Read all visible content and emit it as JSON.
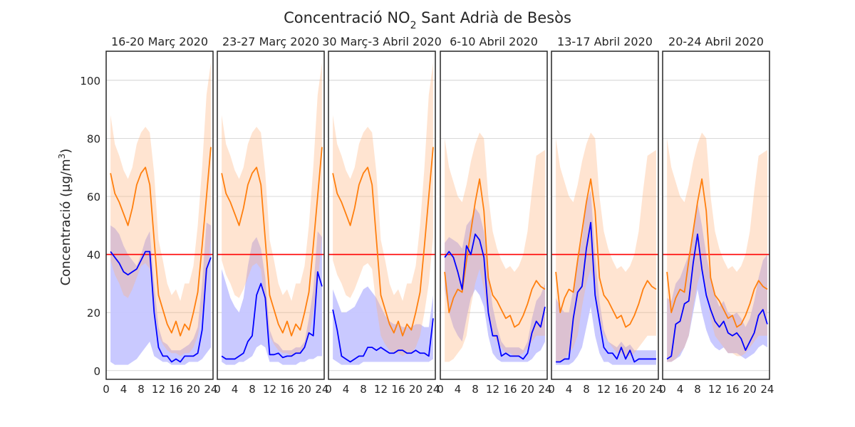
{
  "chart_data": {
    "type": "line",
    "title": "Concentració NO₂ Sant Adrià de Besòs",
    "title_parts": {
      "pre": "Concentració NO",
      "sub": "2",
      "post": " Sant Adrià de Besòs"
    },
    "ylabel": "Concentració (μg/m³)",
    "ylabel_parts": {
      "pre": "Concentració (μg/m",
      "sup": "3",
      "post": ")"
    },
    "xlim": [
      0,
      24.5
    ],
    "ylim": [
      -3,
      110
    ],
    "yticks": [
      0,
      20,
      40,
      60,
      80,
      100
    ],
    "xticks": [
      0,
      4,
      8,
      12,
      16,
      20,
      24
    ],
    "grid": true,
    "reference_line": {
      "value": 40,
      "color": "#ff0000"
    },
    "colors": {
      "observed_line": "#0000ff",
      "observed_band": "#c6c6ff",
      "expected_line": "#ff7f0e",
      "expected_band": "#ffdbbf",
      "overlap_band": "#c8a8c4"
    },
    "panels": [
      {
        "title": "16-20 Març 2020",
        "x": [
          1,
          2,
          3,
          4,
          5,
          6,
          7,
          8,
          9,
          10,
          11,
          12,
          13,
          14,
          15,
          16,
          17,
          18,
          19,
          20,
          21,
          22,
          23,
          24
        ],
        "observed": [
          41,
          39,
          37,
          34,
          33,
          34,
          35,
          38,
          41,
          41,
          20,
          8,
          5,
          5,
          3,
          4,
          3,
          5,
          5,
          5,
          6,
          14,
          35,
          39
        ],
        "observed_low": [
          3,
          2,
          2,
          2,
          2,
          3,
          4,
          6,
          8,
          10,
          5,
          4,
          3,
          3,
          2,
          2,
          2,
          2,
          3,
          3,
          3,
          4,
          6,
          8
        ],
        "observed_high": [
          50,
          49,
          47,
          43,
          40,
          38,
          36,
          40,
          45,
          48,
          30,
          15,
          10,
          9,
          7,
          7,
          7,
          8,
          9,
          11,
          15,
          30,
          51,
          50
        ],
        "expected": [
          68,
          61,
          58,
          54,
          50,
          56,
          64,
          68,
          70,
          64,
          45,
          26,
          21,
          16,
          13,
          17,
          12,
          16,
          14,
          20,
          27,
          43,
          60,
          77
        ],
        "expected_low": [
          38,
          33,
          30,
          26,
          25,
          28,
          32,
          36,
          37,
          35,
          22,
          12,
          9,
          7,
          6,
          6,
          5,
          6,
          6,
          8,
          12,
          20,
          30,
          46
        ],
        "expected_high": [
          88,
          78,
          74,
          69,
          66,
          70,
          78,
          82,
          84,
          82,
          68,
          45,
          38,
          30,
          26,
          28,
          24,
          30,
          30,
          36,
          50,
          70,
          95,
          106
        ]
      },
      {
        "title": "23-27 Març 2020",
        "x": [
          1,
          2,
          3,
          4,
          5,
          6,
          7,
          8,
          9,
          10,
          11,
          12,
          13,
          14,
          15,
          16,
          17,
          18,
          19,
          20,
          21,
          22,
          23,
          24
        ],
        "observed": [
          5,
          4,
          4,
          4,
          5,
          6,
          10,
          12,
          26,
          30,
          25,
          5.5,
          5.5,
          6,
          4.5,
          5,
          5,
          6,
          6,
          8,
          13,
          12,
          34,
          29
        ],
        "observed_low": [
          3,
          2,
          2,
          2,
          3,
          3,
          4,
          5,
          8,
          9,
          8,
          3,
          3,
          3,
          2,
          2,
          2,
          2,
          3,
          3,
          4,
          4,
          5,
          5
        ],
        "observed_high": [
          35,
          30,
          25,
          22,
          20,
          25,
          36,
          44,
          46,
          42,
          32,
          14,
          10,
          9,
          7,
          7,
          7,
          8,
          8,
          10,
          18,
          28,
          48,
          46
        ],
        "expected": [
          68,
          61,
          58,
          54,
          50,
          56,
          64,
          68,
          70,
          64,
          45,
          26,
          21,
          16,
          13,
          17,
          12,
          16,
          14,
          20,
          27,
          43,
          60,
          77
        ],
        "expected_low": [
          38,
          33,
          30,
          26,
          25,
          28,
          32,
          36,
          37,
          35,
          22,
          12,
          9,
          7,
          6,
          6,
          5,
          6,
          6,
          8,
          12,
          20,
          30,
          46
        ],
        "expected_high": [
          88,
          78,
          74,
          69,
          66,
          70,
          78,
          82,
          84,
          82,
          68,
          45,
          38,
          30,
          26,
          28,
          24,
          30,
          30,
          36,
          50,
          70,
          95,
          106
        ]
      },
      {
        "title": "30 Març-3 Abril 2020",
        "x": [
          1,
          2,
          3,
          4,
          5,
          6,
          7,
          8,
          9,
          10,
          11,
          12,
          13,
          14,
          15,
          16,
          17,
          18,
          19,
          20,
          21,
          22,
          23,
          24
        ],
        "observed": [
          21,
          14,
          5,
          4,
          3,
          4,
          5,
          5,
          8,
          8,
          7,
          8,
          7,
          6,
          6,
          7,
          7,
          6,
          6,
          7,
          6,
          6,
          5,
          18
        ],
        "observed_low": [
          4,
          3,
          2,
          2,
          2,
          2,
          2,
          3,
          3,
          3,
          3,
          3,
          3,
          3,
          3,
          3,
          3,
          3,
          3,
          3,
          3,
          3,
          3,
          4
        ],
        "observed_high": [
          28,
          24,
          20,
          20,
          21,
          22,
          25,
          28,
          29,
          27,
          25,
          22,
          19,
          17,
          16,
          16,
          15,
          15,
          15,
          16,
          16,
          15,
          15,
          26
        ],
        "expected": [
          68,
          61,
          58,
          54,
          50,
          56,
          64,
          68,
          70,
          64,
          45,
          26,
          21,
          16,
          13,
          17,
          12,
          16,
          14,
          20,
          27,
          43,
          60,
          77
        ],
        "expected_low": [
          38,
          33,
          30,
          26,
          25,
          28,
          32,
          36,
          37,
          35,
          22,
          12,
          9,
          7,
          6,
          6,
          5,
          6,
          6,
          8,
          12,
          20,
          30,
          46
        ],
        "expected_high": [
          88,
          78,
          74,
          69,
          66,
          70,
          78,
          82,
          84,
          82,
          68,
          45,
          38,
          30,
          26,
          28,
          24,
          30,
          30,
          36,
          50,
          70,
          95,
          106
        ]
      },
      {
        "title": "6-10 Abril 2020",
        "x": [
          1,
          2,
          3,
          4,
          5,
          6,
          7,
          8,
          9,
          10,
          11,
          12,
          13,
          14,
          15,
          16,
          17,
          18,
          19,
          20,
          21,
          22,
          23,
          24
        ],
        "observed": [
          39,
          41,
          39,
          34,
          28,
          43,
          40,
          47,
          45,
          39,
          20,
          12,
          12,
          5,
          6,
          5,
          5,
          5,
          4,
          6,
          13,
          17,
          15,
          22
        ],
        "observed_low": [
          28,
          20,
          15,
          12,
          10,
          18,
          25,
          28,
          26,
          22,
          12,
          6,
          4,
          3,
          3,
          3,
          3,
          3,
          3,
          3,
          4,
          6,
          7,
          10
        ],
        "observed_high": [
          44,
          46,
          45,
          44,
          42,
          50,
          52,
          56,
          54,
          48,
          34,
          22,
          15,
          10,
          8,
          8,
          8,
          8,
          7,
          10,
          18,
          24,
          26,
          30
        ],
        "expected": [
          34,
          20,
          25,
          28,
          27,
          38,
          48,
          58,
          66,
          55,
          32,
          26,
          24,
          21,
          18,
          19,
          15,
          16,
          19,
          23,
          28,
          31,
          29,
          28
        ],
        "expected_low": [
          3,
          3,
          4,
          6,
          8,
          12,
          22,
          30,
          35,
          28,
          18,
          12,
          10,
          8,
          6,
          6,
          5,
          5,
          6,
          8,
          10,
          12,
          12,
          12
        ],
        "expected_high": [
          80,
          70,
          65,
          60,
          58,
          64,
          72,
          78,
          82,
          80,
          60,
          48,
          42,
          38,
          35,
          36,
          34,
          36,
          40,
          48,
          62,
          74,
          75,
          76
        ]
      },
      {
        "title": "13-17 Abril 2020",
        "x": [
          1,
          2,
          3,
          4,
          5,
          6,
          7,
          8,
          9,
          10,
          11,
          12,
          13,
          14,
          15,
          16,
          17,
          18,
          19,
          20,
          21,
          22,
          23,
          24
        ],
        "observed": [
          3,
          3,
          4,
          4,
          18,
          27,
          29,
          42,
          51,
          26,
          17,
          8,
          6,
          6,
          4,
          8,
          4,
          7,
          3,
          4,
          4,
          4,
          4,
          4
        ],
        "observed_low": [
          2,
          2,
          2,
          2,
          3,
          5,
          8,
          15,
          22,
          12,
          6,
          3,
          3,
          2,
          2,
          2,
          2,
          2,
          2,
          2,
          2,
          2,
          2,
          2
        ],
        "observed_high": [
          25,
          22,
          20,
          20,
          28,
          38,
          45,
          58,
          62,
          40,
          24,
          14,
          10,
          9,
          8,
          10,
          8,
          9,
          7,
          7,
          7,
          7,
          7,
          7
        ],
        "expected": [
          34,
          20,
          25,
          28,
          27,
          38,
          48,
          58,
          66,
          55,
          32,
          26,
          24,
          21,
          18,
          19,
          15,
          16,
          19,
          23,
          28,
          31,
          29,
          28
        ],
        "expected_low": [
          3,
          3,
          4,
          6,
          8,
          12,
          22,
          30,
          35,
          28,
          18,
          12,
          10,
          8,
          6,
          6,
          5,
          5,
          6,
          8,
          10,
          12,
          12,
          12
        ],
        "expected_high": [
          80,
          70,
          65,
          60,
          58,
          64,
          72,
          78,
          82,
          80,
          60,
          48,
          42,
          38,
          35,
          36,
          34,
          36,
          40,
          48,
          62,
          74,
          75,
          76
        ]
      },
      {
        "title": "20-24 Abril 2020",
        "x": [
          1,
          2,
          3,
          4,
          5,
          6,
          7,
          8,
          9,
          10,
          11,
          12,
          13,
          14,
          15,
          16,
          17,
          18,
          19,
          20,
          21,
          22,
          23,
          24
        ],
        "observed": [
          4,
          5,
          16,
          17,
          23,
          24,
          37,
          47,
          35,
          26,
          21,
          17,
          15,
          17,
          13,
          12,
          13,
          11,
          7,
          10,
          13,
          19,
          21,
          16
        ],
        "observed_low": [
          3,
          3,
          4,
          5,
          8,
          12,
          20,
          28,
          20,
          14,
          10,
          8,
          7,
          8,
          6,
          6,
          6,
          5,
          4,
          5,
          6,
          8,
          9,
          8
        ],
        "observed_high": [
          25,
          24,
          30,
          32,
          36,
          40,
          48,
          58,
          50,
          40,
          32,
          26,
          22,
          24,
          20,
          19,
          20,
          18,
          15,
          18,
          24,
          32,
          38,
          40
        ],
        "expected": [
          34,
          20,
          25,
          28,
          27,
          38,
          48,
          58,
          66,
          55,
          32,
          26,
          24,
          21,
          18,
          19,
          15,
          16,
          19,
          23,
          28,
          31,
          29,
          28
        ],
        "expected_low": [
          3,
          3,
          4,
          6,
          8,
          12,
          22,
          30,
          35,
          28,
          18,
          12,
          10,
          8,
          6,
          6,
          5,
          5,
          6,
          8,
          10,
          12,
          12,
          12
        ],
        "expected_high": [
          80,
          70,
          65,
          60,
          58,
          64,
          72,
          78,
          82,
          80,
          60,
          48,
          42,
          38,
          35,
          36,
          34,
          36,
          40,
          48,
          62,
          74,
          75,
          76
        ]
      }
    ]
  }
}
